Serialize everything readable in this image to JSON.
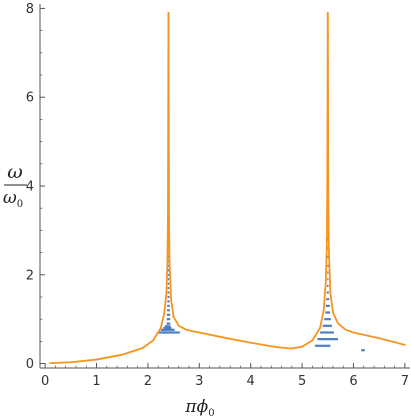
{
  "chart_data": {
    "type": "line",
    "title": "",
    "xlabel": {
      "main": "πϕ",
      "sub": "0"
    },
    "ylabel": {
      "numerator": "ω",
      "denominator": "ω",
      "denominator_sub": "0"
    },
    "xlim": [
      -0.1,
      7.1
    ],
    "ylim": [
      -0.1,
      8.1
    ],
    "x_ticks": [
      0,
      1,
      2,
      3,
      4,
      5,
      6,
      7
    ],
    "x_tick_labels": [
      "0",
      "1",
      "2",
      "3",
      "4",
      "5",
      "6",
      "7"
    ],
    "y_ticks": [
      0,
      2,
      4,
      6,
      8
    ],
    "y_tick_labels": [
      "0",
      "2",
      "4",
      "6",
      "8"
    ],
    "grid": false,
    "colors": {
      "curve": "#f7941d",
      "levels": "#4f7fc0",
      "axis": "#555555"
    },
    "series": [
      {
        "kind": "curve",
        "segments": [
          {
            "x": [
              0.1,
              0.5,
              1.0,
              1.5,
              1.9,
              2.1,
              2.25,
              2.32,
              2.36,
              2.38,
              2.39,
              2.4
            ],
            "y": [
              0.01,
              0.03,
              0.09,
              0.2,
              0.35,
              0.52,
              0.8,
              1.15,
              1.6,
              2.3,
              3.4,
              7.9
            ]
          },
          {
            "x": [
              2.4,
              2.41,
              2.42,
              2.45,
              2.5,
              2.6,
              2.75,
              3.0,
              3.5,
              4.0,
              4.5,
              4.8,
              5.0,
              5.2,
              5.35,
              5.42,
              5.46,
              5.48,
              5.49,
              5.5
            ],
            "y": [
              7.9,
              3.4,
              2.3,
              1.45,
              1.05,
              0.85,
              0.76,
              0.7,
              0.58,
              0.47,
              0.37,
              0.34,
              0.38,
              0.52,
              0.8,
              1.2,
              1.8,
              2.6,
              3.8,
              7.9
            ]
          },
          {
            "x": [
              5.5,
              5.51,
              5.52,
              5.55,
              5.6,
              5.7,
              5.85,
              6.0,
              6.5,
              7.0
            ],
            "y": [
              7.9,
              3.8,
              2.6,
              1.6,
              1.15,
              0.9,
              0.76,
              0.7,
              0.57,
              0.42
            ]
          }
        ]
      },
      {
        "kind": "levels",
        "groups": [
          {
            "x_left": [
              2.36,
              2.363,
              2.366,
              2.369,
              2.372,
              2.375,
              2.378,
              2.38,
              2.382,
              2.385,
              2.387,
              2.388,
              2.389,
              2.39,
              2.391,
              2.392
            ],
            "x_right": [
              2.44,
              2.437,
              2.434,
              2.431,
              2.428,
              2.425,
              2.422,
              2.42,
              2.418,
              2.415,
              2.413,
              2.412,
              2.411,
              2.41,
              2.409,
              2.408
            ],
            "y": [
              0.8,
              0.9,
              1.0,
              1.1,
              1.2,
              1.3,
              1.4,
              1.5,
              1.6,
              1.7,
              1.8,
              1.9,
              2.0,
              2.1,
              2.2,
              2.3
            ]
          },
          {
            "x_left": [
              2.37,
              2.375,
              2.38,
              2.382,
              2.385,
              2.387,
              2.388,
              2.389,
              2.39,
              2.39,
              2.39,
              2.391,
              2.391,
              2.392,
              2.392,
              2.393
            ],
            "x_right": [
              2.43,
              2.425,
              2.42,
              2.418,
              2.415,
              2.413,
              2.412,
              2.411,
              2.41,
              2.41,
              2.41,
              2.409,
              2.409,
              2.408,
              2.408,
              2.407
            ],
            "y": [
              2.4,
              2.6,
              2.8,
              3.0,
              3.2,
              3.4,
              3.6,
              3.8,
              4.0,
              4.2,
              4.4,
              4.6,
              4.8,
              5.0,
              5.2,
              5.4
            ]
          },
          {
            "x_left": [
              2.394,
              2.394,
              2.395,
              2.395,
              2.396,
              2.396,
              2.396,
              2.397
            ],
            "x_right": [
              2.406,
              2.406,
              2.405,
              2.405,
              2.404,
              2.404,
              2.404,
              2.403
            ],
            "y": [
              5.6,
              5.85,
              6.1,
              6.35,
              6.6,
              6.85,
              7.1,
              7.35
            ]
          },
          {
            "x_left": [
              2.2,
              2.25,
              2.3,
              2.33
            ],
            "x_right": [
              2.62,
              2.52,
              2.46,
              2.44
            ],
            "y": [
              0.7,
              0.76,
              0.8,
              0.84
            ]
          },
          {
            "x_left": [
              5.25,
              5.3,
              5.35,
              5.4,
              5.43,
              5.45,
              5.46,
              5.47,
              5.48,
              5.485,
              5.49,
              5.49,
              5.492,
              5.493,
              5.494,
              5.495
            ],
            "x_right": [
              5.55,
              5.7,
              5.62,
              5.58,
              5.56,
              5.545,
              5.54,
              5.53,
              5.52,
              5.515,
              5.51,
              5.51,
              5.508,
              5.507,
              5.506,
              5.505
            ],
            "y": [
              0.4,
              0.55,
              0.7,
              0.85,
              1.0,
              1.15,
              1.3,
              1.45,
              1.6,
              1.75,
              1.9,
              2.05,
              2.2,
              2.4,
              2.6,
              2.8
            ]
          },
          {
            "x_left": [
              5.496,
              5.496,
              5.497,
              5.497,
              5.497,
              5.498,
              5.498,
              5.498
            ],
            "x_right": [
              5.504,
              5.504,
              5.503,
              5.503,
              5.503,
              5.502,
              5.502,
              5.502
            ],
            "y": [
              3.2,
              3.8,
              4.4,
              5.0,
              5.6,
              6.2,
              6.8,
              7.4
            ]
          },
          {
            "x_left": [
              2.3,
              6.15
            ],
            "x_right": [
              2.36,
              6.22
            ],
            "y": [
              0.7,
              0.3
            ]
          }
        ]
      }
    ]
  }
}
